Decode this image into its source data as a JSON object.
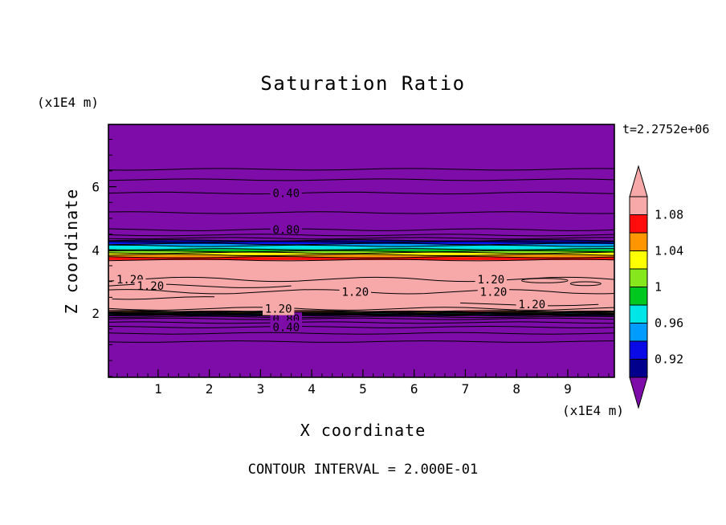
{
  "chart_data": {
    "type": "heatmap",
    "subtype": "filled contour plot",
    "title": "Saturation Ratio",
    "time_label": "t=2.2752e+06",
    "xlabel": "X coordinate",
    "ylabel": "Z coordinate",
    "x_unit": "(x1E4 m)",
    "y_unit": "(x1E4 m)",
    "footer": "CONTOUR INTERVAL = 2.000E-01",
    "contour_interval": 0.2,
    "x_range": [
      0.03,
      9.91
    ],
    "z_range": [
      -0.03,
      7.97
    ],
    "x_minor_step": 0.2,
    "z_minor_step": 0.5,
    "x_ticks": [
      {
        "text": "1",
        "value": 1
      },
      {
        "text": "2",
        "value": 2
      },
      {
        "text": "3",
        "value": 3
      },
      {
        "text": "4",
        "value": 4
      },
      {
        "text": "5",
        "value": 5
      },
      {
        "text": "6",
        "value": 6
      },
      {
        "text": "7",
        "value": 7
      },
      {
        "text": "8",
        "value": 8
      },
      {
        "text": "9",
        "value": 9
      }
    ],
    "z_ticks": [
      {
        "text": "2",
        "value": 2
      },
      {
        "text": "4",
        "value": 4
      },
      {
        "text": "6",
        "value": 6
      }
    ],
    "bands": [
      {
        "level": "<0.90",
        "color": "#7D0CA8",
        "z_top": 7.97,
        "z_bot": 4.3
      },
      {
        "level": "0.90-0.92",
        "color": "#00008C",
        "z_top": 4.3,
        "z_bot": 4.25
      },
      {
        "level": "0.92-0.94",
        "color": "#0A0AE6",
        "z_top": 4.25,
        "z_bot": 4.19
      },
      {
        "level": "0.94-0.96",
        "color": "#009CFF",
        "z_top": 4.19,
        "z_bot": 4.13
      },
      {
        "level": "0.96-0.98",
        "color": "#00E6E6",
        "z_top": 4.13,
        "z_bot": 4.02
      },
      {
        "level": "0.98-1.00",
        "color": "#00C81E",
        "z_top": 4.02,
        "z_bot": 3.96
      },
      {
        "level": "1.00-1.02",
        "color": "#86E81C",
        "z_top": 3.96,
        "z_bot": 3.91
      },
      {
        "level": "1.02-1.04",
        "color": "#FFFF00",
        "z_top": 3.91,
        "z_bot": 3.84
      },
      {
        "level": "1.04-1.06",
        "color": "#FF9500",
        "z_top": 3.84,
        "z_bot": 3.77
      },
      {
        "level": "1.06-1.08",
        "color": "#FF0D0D",
        "z_top": 3.77,
        "z_bot": 3.68
      },
      {
        "level": ">1.08",
        "color": "#F7A8A8",
        "z_top": 3.68,
        "z_bot": 2.06
      },
      {
        "level": "1.06-1.08",
        "color": "#FF0D0D",
        "z_top": 2.06,
        "z_bot": 2.045
      },
      {
        "level": "1.04-1.06",
        "color": "#FF9500",
        "z_top": 2.045,
        "z_bot": 2.03
      },
      {
        "level": "1.02-1.04",
        "color": "#FFFF00",
        "z_top": 2.03,
        "z_bot": 2.015
      },
      {
        "level": "1.00-1.02",
        "color": "#86E81C",
        "z_top": 2.015,
        "z_bot": 2.0
      },
      {
        "level": "0.98-1.00",
        "color": "#00C81E",
        "z_top": 2.0,
        "z_bot": 1.985
      },
      {
        "level": "0.96-0.98",
        "color": "#00E6E6",
        "z_top": 1.985,
        "z_bot": 1.97
      },
      {
        "level": "0.94-0.96",
        "color": "#009CFF",
        "z_top": 1.97,
        "z_bot": 1.955
      },
      {
        "level": "0.92-0.94",
        "color": "#0A0AE6",
        "z_top": 1.955,
        "z_bot": 1.94
      },
      {
        "level": "0.90-0.92",
        "color": "#00008C",
        "z_top": 1.94,
        "z_bot": 1.925
      },
      {
        "level": "<0.90",
        "color": "#7D0CA8",
        "z_top": 1.925,
        "z_bot": -0.03
      }
    ],
    "contour_lines": [
      {
        "z": 6.55,
        "amp": 1.0,
        "seed": 1,
        "bg": "#7D0CA8",
        "labels": []
      },
      {
        "z": 6.22,
        "amp": 1.0,
        "seed": 2,
        "bg": "#7D0CA8",
        "labels": []
      },
      {
        "z": 5.8,
        "amp": 1.1,
        "seed": 3,
        "bg": "#7D0CA8",
        "labels": [
          {
            "x": 3.5,
            "text": "0.40"
          }
        ]
      },
      {
        "z": 5.18,
        "amp": 1.1,
        "seed": 4,
        "bg": "#7D0CA8",
        "labels": []
      },
      {
        "z": 4.64,
        "amp": 1.2,
        "seed": 5,
        "bg": "#7D0CA8",
        "labels": [
          {
            "x": 3.5,
            "text": "0.80"
          }
        ]
      },
      {
        "z": 4.47,
        "amp": 1.0,
        "seed": 6,
        "bg": "#7D0CA8",
        "labels": []
      },
      {
        "z": 4.37,
        "amp": 0.9,
        "seed": 7,
        "bg": "#7D0CA8",
        "labels": []
      },
      {
        "z": 1.88,
        "amp": 0.8,
        "seed": 8,
        "bg": "#7D0CA8",
        "labels": []
      },
      {
        "z": 1.82,
        "amp": 0.9,
        "seed": 9,
        "bg": "#7D0CA8",
        "labels": [
          {
            "x": 3.5,
            "text": "0.80"
          }
        ]
      },
      {
        "z": 1.7,
        "amp": 0.9,
        "seed": 10,
        "bg": "#7D0CA8",
        "labels": []
      },
      {
        "z": 1.56,
        "amp": 0.9,
        "seed": 11,
        "bg": "#7D0CA8",
        "labels": [
          {
            "x": 3.5,
            "text": "0.40"
          }
        ]
      },
      {
        "z": 1.36,
        "amp": 0.9,
        "seed": 12,
        "bg": "#7D0CA8",
        "labels": []
      },
      {
        "z": 1.1,
        "amp": 0.9,
        "seed": 13,
        "bg": "#7D0CA8",
        "labels": []
      },
      {
        "z": 3.07,
        "x1": 0.03,
        "x2": 9.91,
        "amp": 2.6,
        "seed": 21,
        "bg": "#F7A8A8",
        "labels": [
          {
            "x": 0.45,
            "text": "1.20"
          },
          {
            "x": 7.5,
            "text": "1.20"
          }
        ]
      },
      {
        "z": 2.86,
        "x1": 0.03,
        "x2": 3.6,
        "amp": 2.2,
        "seed": 22,
        "bg": "#F7A8A8",
        "labels": [
          {
            "x": 0.85,
            "text": "1.20"
          }
        ]
      },
      {
        "z": 2.68,
        "x1": 0.03,
        "x2": 9.91,
        "amp": 2.6,
        "seed": 23,
        "bg": "#F7A8A8",
        "labels": [
          {
            "x": 4.85,
            "text": "1.20"
          },
          {
            "x": 7.55,
            "text": "1.20"
          }
        ]
      },
      {
        "z": 2.48,
        "x1": 0.1,
        "x2": 2.1,
        "amp": 1.6,
        "seed": 26,
        "bg": "#F7A8A8",
        "labels": []
      },
      {
        "z": 2.28,
        "x1": 6.9,
        "x2": 9.6,
        "amp": 1.8,
        "seed": 24,
        "bg": "#F7A8A8",
        "labels": [
          {
            "x": 8.3,
            "text": "1.20"
          }
        ]
      },
      {
        "z": 2.14,
        "x1": 0.03,
        "x2": 9.91,
        "amp": 1.8,
        "seed": 25,
        "bg": "#F7A8A8",
        "labels": [
          {
            "x": 3.35,
            "text": "1.20"
          }
        ]
      }
    ],
    "closed_contours": [
      {
        "cx": 8.55,
        "cz": 3.03,
        "rx": 0.45,
        "rz": 0.07
      },
      {
        "cx": 9.35,
        "cz": 2.93,
        "rx": 0.3,
        "rz": 0.06
      }
    ],
    "colorbar": {
      "min": 0.9,
      "max": 1.1,
      "segment_colors_top_to_bottom": [
        "#F7A8A8",
        "#FF0D0D",
        "#FF9500",
        "#FFFF00",
        "#86E81C",
        "#00C81E",
        "#00E6E6",
        "#009CFF",
        "#0A0AE6",
        "#00008C"
      ],
      "over_arrow_color": "#F7A8A8",
      "under_arrow_color": "#7D0CA8",
      "labels": [
        {
          "text": "1.08",
          "value": 1.08
        },
        {
          "text": "1.04",
          "value": 1.04
        },
        {
          "text": "1",
          "value": 1.0
        },
        {
          "text": "0.96",
          "value": 0.96
        },
        {
          "text": "0.92",
          "value": 0.92
        }
      ]
    }
  }
}
